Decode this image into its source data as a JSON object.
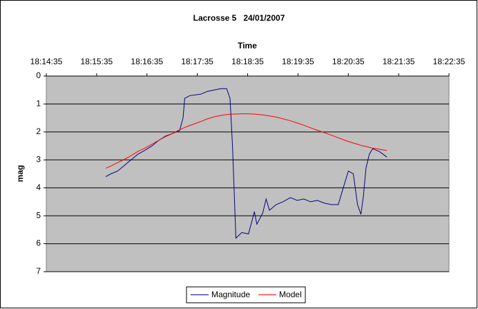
{
  "chart_data": {
    "type": "line",
    "title": "Lacrosse 5   24/01/2007",
    "x_label": "Time",
    "y_label": "mag",
    "x": [
      "18:15:46",
      "18:15:52",
      "18:16:00",
      "18:16:08",
      "18:16:16",
      "18:16:24",
      "18:16:33",
      "18:16:41",
      "18:16:49",
      "18:16:57",
      "18:17:06",
      "18:17:14",
      "18:17:18",
      "18:17:20",
      "18:17:26",
      "18:17:39",
      "18:17:47",
      "18:17:55",
      "18:18:03",
      "18:18:10",
      "18:18:14",
      "18:18:17",
      "18:18:20",
      "18:18:21",
      "18:18:28",
      "18:18:36",
      "18:18:40",
      "18:18:43",
      "18:18:46",
      "18:18:53",
      "18:18:57",
      "18:19:01",
      "18:19:09",
      "18:19:17",
      "18:19:26",
      "18:19:34",
      "18:19:42",
      "18:19:50",
      "18:19:58",
      "18:20:07",
      "18:20:15",
      "18:20:23",
      "18:20:27",
      "18:20:31",
      "18:20:35",
      "18:20:41",
      "18:20:46",
      "18:20:50",
      "18:20:53",
      "18:20:56",
      "18:21:00",
      "18:21:04",
      "18:21:12",
      "18:21:21"
    ],
    "series": [
      {
        "name": "Magnitude",
        "color": "#000080",
        "values": [
          3.6,
          3.5,
          3.4,
          3.2,
          3.0,
          2.8,
          2.65,
          2.5,
          2.3,
          2.15,
          2.05,
          1.95,
          1.5,
          0.8,
          0.7,
          0.65,
          0.55,
          0.5,
          0.45,
          0.45,
          0.8,
          2.5,
          5.0,
          5.8,
          5.6,
          5.65,
          5.2,
          4.85,
          5.3,
          4.9,
          4.4,
          4.8,
          4.6,
          4.5,
          4.35,
          4.45,
          4.4,
          4.5,
          4.45,
          4.55,
          4.6,
          4.6,
          4.2,
          3.8,
          3.4,
          3.5,
          4.6,
          4.95,
          4.3,
          3.3,
          2.8,
          2.6,
          2.7,
          2.9
        ]
      },
      {
        "name": "Model",
        "color": "#ff0000",
        "values": [
          3.3,
          3.22,
          3.1,
          2.98,
          2.85,
          2.7,
          2.57,
          2.44,
          2.3,
          2.17,
          2.05,
          1.92,
          1.87,
          1.84,
          1.77,
          1.63,
          1.53,
          1.46,
          1.41,
          1.38,
          1.37,
          1.36,
          1.36,
          1.36,
          1.35,
          1.35,
          1.36,
          1.36,
          1.37,
          1.39,
          1.41,
          1.43,
          1.47,
          1.53,
          1.6,
          1.68,
          1.76,
          1.85,
          1.94,
          2.03,
          2.12,
          2.21,
          2.25,
          2.3,
          2.34,
          2.4,
          2.44,
          2.48,
          2.5,
          2.52,
          2.55,
          2.58,
          2.62,
          2.67
        ]
      }
    ],
    "xlim": [
      "18:14:35",
      "18:22:35"
    ],
    "xticks": [
      "18:14:35",
      "18:15:35",
      "18:16:35",
      "18:17:35",
      "18:18:35",
      "18:19:35",
      "18:20:35",
      "18:21:35",
      "18:22:35"
    ],
    "ylim": [
      0,
      7
    ],
    "yticks": [
      0,
      1,
      2,
      3,
      4,
      5,
      6,
      7
    ],
    "y_reversed": true,
    "grid": true,
    "plot_background": "#c0c0c0",
    "legend": "bottom"
  }
}
